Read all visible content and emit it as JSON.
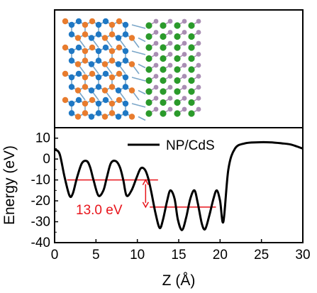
{
  "chart_data": {
    "type": "line",
    "xlabel": "Z (Å)",
    "ylabel": "Energy (eV)",
    "xlim": [
      0,
      30
    ],
    "ylim": [
      -40,
      15
    ],
    "xticks": [
      0,
      5,
      10,
      15,
      20,
      25,
      30
    ],
    "yticks": [
      -40,
      -30,
      -20,
      -10,
      0,
      10
    ],
    "legend": {
      "position": "top-right"
    },
    "grid": false,
    "series": [
      {
        "name": "NP/CdS",
        "color": "#000000",
        "x": [
          0,
          0.6,
          1.2,
          1.8,
          2.2,
          2.7,
          3.3,
          3.9,
          4.3,
          4.7,
          5.3,
          5.9,
          6.3,
          6.8,
          7.4,
          7.9,
          8.3,
          8.7,
          9.3,
          9.9,
          10.4,
          10.9,
          11.3,
          11.7,
          12.2,
          12.7,
          13.1,
          13.6,
          14.0,
          14.5,
          14.9,
          15.4,
          15.9,
          16.4,
          16.9,
          17.3,
          17.8,
          18.2,
          18.7,
          19.2,
          19.6,
          20.0,
          20.4,
          21.0,
          21.8,
          23.0,
          24.5,
          26.0,
          27.5,
          28.5,
          29.3,
          30.0
        ],
        "y": [
          4.5,
          2.5,
          -8.5,
          -17.5,
          -16.5,
          -9,
          -2,
          -1,
          -4,
          -10,
          -17.5,
          -15,
          -9,
          -2,
          -1,
          -4,
          -10,
          -17.5,
          -15,
          -9,
          -4.5,
          -5,
          -9,
          -16,
          -26,
          -33,
          -29,
          -20,
          -15,
          -19,
          -29,
          -34,
          -28,
          -19,
          -15,
          -21,
          -31,
          -33.5,
          -27,
          -19,
          -15,
          -20,
          -30,
          -5,
          5,
          7.5,
          8,
          8,
          7.5,
          7,
          6,
          5
        ]
      }
    ],
    "annotations": [
      {
        "text": "13.0 eV",
        "from_y": -10,
        "to_y": -23,
        "at_x": 11
      }
    ],
    "reference_lines": [
      {
        "y": -10,
        "x_from": 1.5,
        "x_to": 12.5,
        "color": "#e8141b"
      },
      {
        "y": -23,
        "x_from": 11.5,
        "x_to": 19.5,
        "color": "#e8141b"
      }
    ]
  },
  "structure_inset": {
    "atom_colors": {
      "phosphorus_dark": "#1f78c4",
      "phosphorus_light": "#e87c2e",
      "cadmium": "#a98db3",
      "sulfur": "#2b9a2b",
      "bond": "#7aa6c8"
    }
  }
}
